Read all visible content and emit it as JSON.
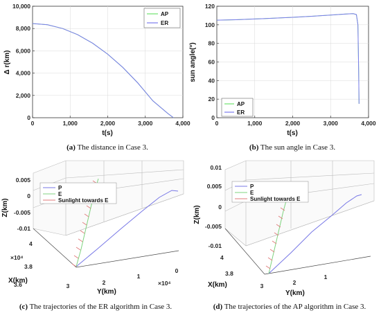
{
  "colors": {
    "ap": "#6fe36f",
    "er": "#7a7aee",
    "ep": "#7fd37f",
    "p": "#7777e6",
    "sun": "#e07a7a",
    "grid": "#d9d9d9",
    "axis": "#333333"
  },
  "chart_data": [
    {
      "type": "line",
      "panel": "a",
      "xlabel": "t(s)",
      "ylabel": "Δ r(km)",
      "xlim": [
        0,
        4000
      ],
      "ylim": [
        0,
        10000
      ],
      "xticks": [
        "0",
        "1,000",
        "2,000",
        "3,000",
        "4,000"
      ],
      "yticks": [
        "0",
        "2,000",
        "4,000",
        "6,000",
        "8,000",
        "10,000"
      ],
      "legend_position": "top-right",
      "series": [
        {
          "name": "AP",
          "x": [
            0,
            400,
            800,
            1200,
            1600,
            2000,
            2400,
            2800,
            3200,
            3600,
            3750
          ],
          "y": [
            8450,
            8340,
            8000,
            7450,
            6680,
            5700,
            4520,
            3120,
            1520,
            380,
            0
          ]
        },
        {
          "name": "ER",
          "x": [
            0,
            400,
            800,
            1200,
            1600,
            2000,
            2400,
            2800,
            3200,
            3600,
            3750
          ],
          "y": [
            8450,
            8340,
            8000,
            7450,
            6680,
            5700,
            4520,
            3120,
            1520,
            380,
            0
          ]
        }
      ],
      "caption_label": "(a)",
      "caption": " The distance in Case 3."
    },
    {
      "type": "line",
      "panel": "b",
      "xlabel": "t(s)",
      "ylabel": "sun angle(°)",
      "xlim": [
        0,
        4000
      ],
      "ylim": [
        0,
        120
      ],
      "xticks": [
        "0",
        "1,000",
        "2,000",
        "3,000",
        "4,000"
      ],
      "yticks": [
        "0",
        "20",
        "40",
        "60",
        "80",
        "100",
        "120"
      ],
      "legend_position": "bottom-right",
      "series": [
        {
          "name": "AP",
          "x": [
            0,
            500,
            1000,
            1500,
            2000,
            2500,
            3000,
            3400,
            3600,
            3680,
            3720,
            3740,
            3750
          ],
          "y": [
            105,
            105.5,
            106.3,
            107.1,
            108.1,
            109.2,
            110.5,
            111.6,
            112,
            111,
            100,
            50,
            15
          ]
        },
        {
          "name": "ER",
          "x": [
            0,
            500,
            1000,
            1500,
            2000,
            2500,
            3000,
            3400,
            3600,
            3680,
            3720,
            3740,
            3750
          ],
          "y": [
            105,
            105.5,
            106.3,
            107.1,
            108.1,
            109.2,
            110.5,
            111.6,
            112,
            111,
            100,
            50,
            15
          ]
        }
      ],
      "caption_label": "(b)",
      "caption": " The sun angle in Case 3."
    },
    {
      "type": "line3d",
      "panel": "c",
      "xlabel": "X(km)",
      "ylabel": "Y(km)",
      "zlabel": "Z(km)",
      "zticks": [
        "0.005",
        "0",
        "-0.005",
        "-0.01"
      ],
      "xticks": [
        "3.6",
        "3.8",
        "4"
      ],
      "yticks": [
        "3",
        "2",
        "1",
        "0"
      ],
      "x_exponent": "×10⁴",
      "y_exponent": "×10⁴",
      "legend": [
        "P",
        "E",
        "Sunlight towards E"
      ],
      "caption_label": "(c)",
      "caption": " The trajectories of the ER algorithm in Case 3."
    },
    {
      "type": "line3d",
      "panel": "d",
      "xlabel": "X(km)",
      "ylabel": "Y(km)",
      "zlabel": "Z(km)",
      "zticks": [
        "0.01",
        "0.005",
        "0",
        "-0.005",
        "-0.01"
      ],
      "xticks": [
        "3.8",
        "4"
      ],
      "yticks": [
        "3",
        "2",
        "1"
      ],
      "legend": [
        "P",
        "E",
        "Sunlight towards E"
      ],
      "caption_label": "(d)",
      "caption": " The trajectories of the AP algorithm in Case 3."
    }
  ]
}
